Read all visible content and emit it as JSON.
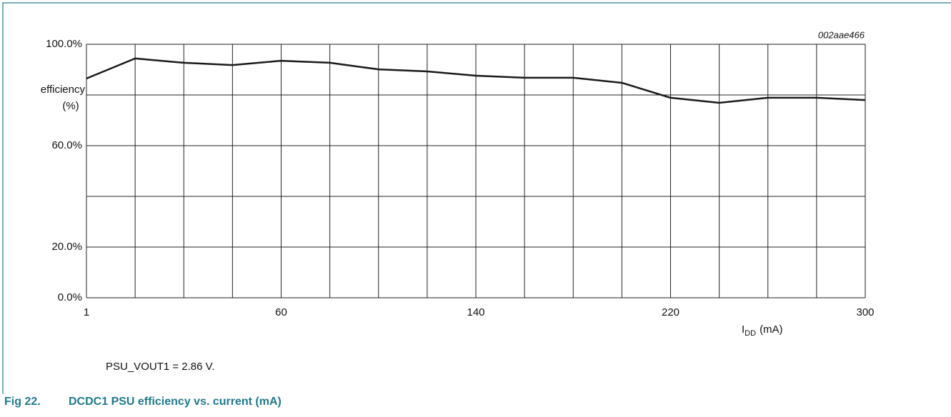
{
  "chart_data": {
    "type": "line",
    "code": "002aae466",
    "ylabel_lines": [
      "efficiency",
      "(%)"
    ],
    "xlabel_parts": [
      "I",
      "DD",
      "(mA)"
    ],
    "note": "PSU_VOUT1 = 2.86 V.",
    "figure_number": "Fig 22.",
    "caption": "DCDC1 PSU efficiency vs. current (mA)",
    "categories": [
      "1",
      null,
      null,
      null,
      "60",
      null,
      null,
      null,
      "140",
      null,
      null,
      null,
      "220",
      null,
      null,
      null,
      "300"
    ],
    "values": [
      86.5,
      94.4,
      92.7,
      91.8,
      93.5,
      92.7,
      90.1,
      89.3,
      87.6,
      86.8,
      86.8,
      84.8,
      78.9,
      76.9,
      78.9,
      78.9,
      78.0
    ],
    "color": "#1a1a1a",
    "ylim": [
      0,
      100
    ],
    "yticks": [
      {
        "value": 0,
        "label": "0.0%"
      },
      {
        "value": 20,
        "label": "20.0%"
      },
      {
        "value": 60,
        "label": "60.0%"
      },
      {
        "value": 100,
        "label": "100.0%"
      }
    ],
    "y_gridlines": [
      0,
      20,
      40,
      60,
      80,
      100
    ],
    "grid": true
  }
}
